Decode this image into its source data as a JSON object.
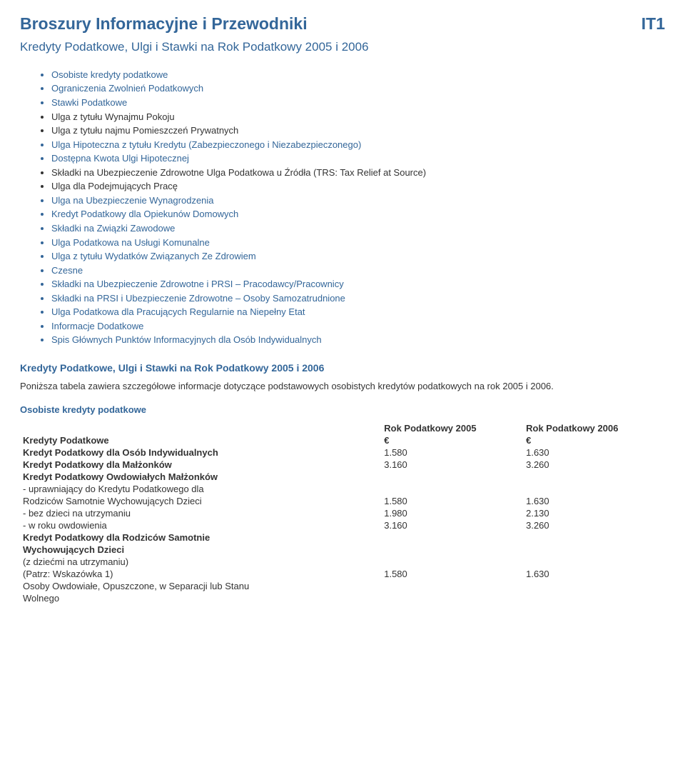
{
  "header": {
    "title": "Broszury Informacyjne i Przewodniki",
    "code": "IT1"
  },
  "subtitle": "Kredyty Podatkowe, Ulgi i Stawki na Rok Podatkowy 2005 i 2006",
  "toc": [
    {
      "text": "Osobiste kredyty podatkowe",
      "link": true
    },
    {
      "text": "Ograniczenia Zwolnień Podatkowych",
      "link": true
    },
    {
      "text": "Stawki Podatkowe",
      "link": true
    },
    {
      "text": "Ulga z tytułu Wynajmu Pokoju",
      "link": false
    },
    {
      "text": "Ulga z tytułu najmu Pomieszczeń Prywatnych",
      "link": false
    },
    {
      "text": "Ulga Hipoteczna z tytułu Kredytu (Zabezpieczonego i Niezabezpieczonego)",
      "link": true
    },
    {
      "text": "Dostępna Kwota Ulgi Hipotecznej",
      "link": true
    },
    {
      "text": "Składki na Ubezpieczenie Zdrowotne Ulga Podatkowa u Źródła (TRS: Tax Relief at Source)",
      "link": false
    },
    {
      "text": "Ulga dla Podejmujących Pracę",
      "link": false
    },
    {
      "text": "Ulga na Ubezpieczenie Wynagrodzenia",
      "link": true
    },
    {
      "text": "Kredyt Podatkowy dla Opiekunów Domowych",
      "link": true
    },
    {
      "text": "Składki na Związki Zawodowe",
      "link": true
    },
    {
      "text": "Ulga Podatkowa na Usługi Komunalne",
      "link": true
    },
    {
      "text": "Ulga z tytułu Wydatków Związanych Ze Zdrowiem",
      "link": true
    },
    {
      "text": "Czesne",
      "link": true
    },
    {
      "text": "Składki na Ubezpieczenie Zdrowotne i PRSI – Pracodawcy/Pracownicy",
      "link": true
    },
    {
      "text": "Składki na PRSI i Ubezpieczenie Zdrowotne – Osoby Samozatrudnione",
      "link": true
    },
    {
      "text": "Ulga Podatkowa dla Pracujących Regularnie na Niepełny Etat",
      "link": true
    },
    {
      "text": "Informacje Dodatkowe",
      "link": true
    },
    {
      "text": "Spis Głównych Punktów Informacyjnych dla Osób Indywidualnych",
      "link": true
    }
  ],
  "section_heading": "Kredyty Podatkowe, Ulgi i Stawki na Rok Podatkowy 2005 i 2006",
  "lead_paragraph": "Poniższa tabela zawiera szczegółowe informacje dotyczące podstawowych osobistych kredytów podatkowych na rok 2005 i 2006.",
  "table_heading": "Osobiste kredyty podatkowe",
  "table": {
    "headers": [
      "Kredyty Podatkowe",
      "Rok Podatkowy 2005",
      "Rok Podatkowy 2006"
    ],
    "currency": "€",
    "rows": [
      {
        "label": "Kredyt Podatkowy dla Osób Indywidualnych",
        "bold": true,
        "v2005": "1.580",
        "v2006": "1.630"
      },
      {
        "label": "Kredyt Podatkowy dla Małżonków",
        "bold": true,
        "v2005": "3.160",
        "v2006": "3.260"
      },
      {
        "label": "Kredyt Podatkowy Owdowiałych Małżonków",
        "bold": true,
        "v2005": "",
        "v2006": ""
      },
      {
        "label": "- uprawniający do Kredytu Podatkowego dla",
        "bold": false,
        "v2005": "",
        "v2006": ""
      },
      {
        "label": "Rodziców Samotnie Wychowujących Dzieci",
        "bold": false,
        "v2005": "1.580",
        "v2006": "1.630"
      },
      {
        "label": "- bez dzieci na utrzymaniu",
        "bold": false,
        "v2005": "1.980",
        "v2006": "2.130"
      },
      {
        "label": "- w roku owdowienia",
        "bold": false,
        "v2005": "3.160",
        "v2006": "3.260"
      },
      {
        "label": "Kredyt Podatkowy dla Rodziców Samotnie",
        "bold": true,
        "v2005": "",
        "v2006": ""
      },
      {
        "label": "Wychowujących Dzieci",
        "bold": true,
        "v2005": "",
        "v2006": ""
      },
      {
        "label": "(z dziećmi na utrzymaniu)",
        "bold": false,
        "v2005": "",
        "v2006": ""
      },
      {
        "label": "(Patrz: Wskazówka 1)",
        "bold": false,
        "v2005": "1.580",
        "v2006": "1.630"
      },
      {
        "label": "Osoby Owdowiałe, Opuszczone, w Separacji lub Stanu",
        "bold": false,
        "v2005": "",
        "v2006": ""
      },
      {
        "label": "Wolnego",
        "bold": false,
        "v2005": "",
        "v2006": ""
      }
    ]
  }
}
